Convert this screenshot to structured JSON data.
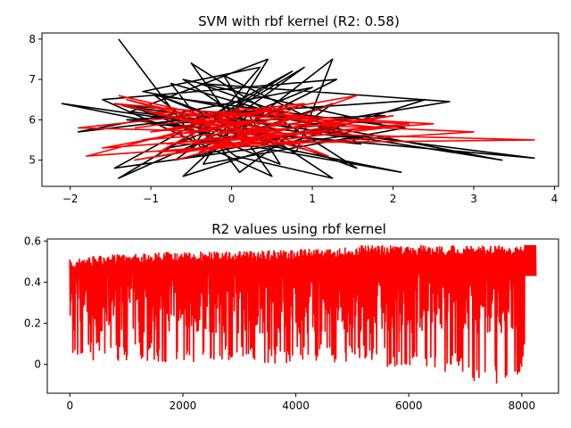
{
  "chart_data": [
    {
      "type": "line",
      "title": "SVM with rbf kernel (R2: 0.58)",
      "xlabel": "",
      "ylabel": "",
      "xlim": [
        -2.35,
        4.05
      ],
      "ylim": [
        4.35,
        8.15
      ],
      "xticks": [
        -2,
        -1,
        0,
        1,
        2,
        3,
        4
      ],
      "yticks": [
        5,
        6,
        7,
        8
      ],
      "grid": false,
      "legend": "none",
      "series": [
        {
          "color": "#000000",
          "x": [
            -1.4,
            -0.3,
            1.25,
            0.8,
            -0.9,
            1.55,
            -0.5,
            0.5,
            -1.6,
            1.3,
            -0.2,
            2.1,
            -2.1,
            0.0,
            -1.4,
            0.9,
            -0.7,
            1.9,
            -1.0,
            3.75,
            -1.2,
            0.6,
            -0.1,
            1.6,
            -1.3,
            2.4,
            -0.6,
            0.25,
            -1.9,
            1.0,
            -0.8,
            2.7,
            -0.4,
            1.4,
            -1.45,
            0.75,
            -0.15,
            3.35,
            -1.1,
            0.35,
            -0.55,
            1.25,
            0.1,
            -0.75,
            1.7,
            -1.25,
            0.45,
            -0.35,
            2.15,
            -0.95,
            0.05,
            1.25,
            -0.6,
            1.85,
            -1.35,
            0.55,
            -0.05
          ],
          "y": [
            8.0,
            5.1,
            7.5,
            5.2,
            6.6,
            4.8,
            7.4,
            4.6,
            6.5,
            7.0,
            5.5,
            4.7,
            6.4,
            5.8,
            4.55,
            7.3,
            5.0,
            6.1,
            5.9,
            5.05,
            6.3,
            4.9,
            7.1,
            5.4,
            6.0,
            6.5,
            4.6,
            6.2,
            5.7,
            6.8,
            5.3,
            6.45,
            6.9,
            5.6,
            4.8,
            7.2,
            6.1,
            5.0,
            6.7,
            7.3,
            5.2,
            6.4,
            4.7,
            6.9,
            5.5,
            6.2,
            7.5,
            4.9,
            5.8,
            6.6,
            5.1,
            4.55,
            7.0,
            5.9,
            6.35,
            5.4,
            6.0
          ]
        },
        {
          "color": "#ff0000",
          "x": [
            -1.4,
            1.0,
            -1.8,
            0.5,
            1.3,
            -1.2,
            2.0,
            -0.8,
            3.75,
            -1.9,
            0.9,
            -0.4,
            1.55,
            -1.0,
            0.3,
            -1.6,
            2.5,
            -0.2,
            1.2,
            -1.3,
            0.6,
            -0.6,
            3.0,
            -0.9,
            0.1,
            1.4,
            -1.1,
            0.8,
            -0.3,
            1.9,
            -1.45,
            0.4,
            -0.7,
            1.1,
            0.0,
            -1.05,
            2.2,
            -0.5,
            0.7,
            -1.2
          ],
          "y": [
            6.6,
            5.5,
            5.1,
            6.3,
            5.8,
            5.0,
            6.1,
            5.4,
            5.5,
            5.8,
            6.4,
            5.2,
            6.6,
            5.7,
            6.0,
            5.3,
            5.9,
            6.2,
            5.1,
            6.5,
            5.6,
            6.0,
            5.7,
            5.2,
            6.3,
            5.9,
            5.5,
            6.1,
            5.3,
            5.8,
            6.4,
            5.6,
            5.0,
            6.0,
            5.7,
            6.2,
            5.9,
            5.4,
            6.3,
            5.8
          ]
        }
      ]
    },
    {
      "type": "line",
      "title": "R2 values using rbf kernel",
      "xlabel": "",
      "ylabel": "",
      "xlim": [
        -400,
        8650
      ],
      "ylim": [
        -0.14,
        0.61
      ],
      "xticks": [
        0,
        2000,
        4000,
        6000,
        8000
      ],
      "yticks": [
        0.0,
        0.2,
        0.4,
        0.6
      ],
      "grid": false,
      "legend": "none",
      "series": [
        {
          "color": "#ff0000",
          "x_range": [
            0,
            8250
          ],
          "upper_envelope": {
            "x": [
              0,
              500,
              1000,
              2000,
              3000,
              4000,
              5000,
              5100,
              6000,
              7000,
              8000,
              8250
            ],
            "y": [
              0.51,
              0.53,
              0.54,
              0.55,
              0.55,
              0.56,
              0.57,
              0.58,
              0.58,
              0.58,
              0.58,
              0.58
            ]
          },
          "lower_envelope": {
            "x": [
              0,
              500,
              1000,
              2000,
              3000,
              4000,
              5000,
              6000,
              7000,
              7350,
              8000,
              8250
            ],
            "y": [
              0.02,
              0.01,
              0.02,
              0.0,
              0.01,
              0.0,
              0.0,
              -0.03,
              -0.05,
              -0.12,
              -0.04,
              0.43
            ]
          },
          "tail_value": 0.43
        }
      ]
    }
  ]
}
